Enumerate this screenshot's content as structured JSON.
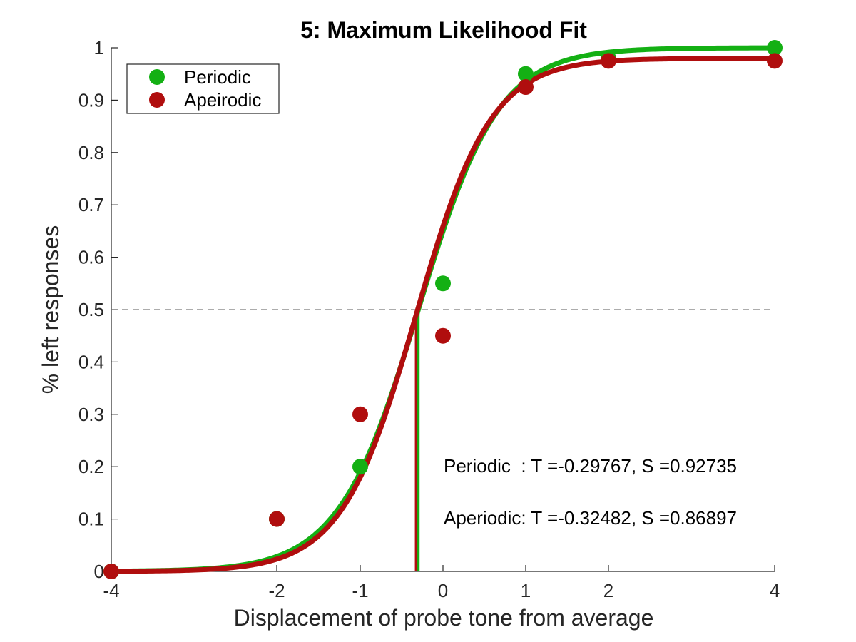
{
  "chart_data": {
    "type": "line",
    "title": "5: Maximum Likelihood Fit",
    "xlabel": "Displacement of probe tone from average",
    "ylabel": "% left responses",
    "xlim": [
      -4,
      4
    ],
    "ylim": [
      0,
      1
    ],
    "x_scale": "custom-nonlinear (ticks at -4,-2,-1,0,1,2,4)",
    "x_ticks": [
      -4,
      -2,
      -1,
      0,
      1,
      2,
      4
    ],
    "x_tick_labels": [
      "-4",
      "-2",
      "-1",
      "0",
      "1",
      "2",
      "4"
    ],
    "y_ticks": [
      0,
      0.1,
      0.2,
      0.3,
      0.4,
      0.5,
      0.6,
      0.7,
      0.8,
      0.9,
      1
    ],
    "y_tick_labels": [
      "0",
      "0.1",
      "0.2",
      "0.3",
      "0.4",
      "0.5",
      "0.6",
      "0.7",
      "0.8",
      "0.9",
      "1"
    ],
    "grid": false,
    "legend_position": "top-left",
    "reference_line_y": 0.5,
    "series": [
      {
        "name": "Periodic",
        "color": "#14b014",
        "x": [
          -4,
          -2,
          -1,
          0,
          1,
          2,
          4
        ],
        "y": [
          0,
          0.1,
          0.2,
          0.55,
          0.95,
          0.98,
          1.0
        ],
        "fit": {
          "threshold": -0.29767,
          "slope": 0.92735,
          "lower": 0,
          "upper": 1.0
        }
      },
      {
        "name": "Apeirodic",
        "color": "#b00e0e",
        "x": [
          -4,
          -2,
          -1,
          0,
          1,
          2,
          4
        ],
        "y": [
          0,
          0.1,
          0.3,
          0.45,
          0.925,
          0.975,
          0.975
        ],
        "fit": {
          "threshold": -0.32482,
          "slope": 0.86897,
          "lower": 0,
          "upper": 0.98
        }
      }
    ],
    "annotations": [
      "Periodic  : T =-0.29767, S =0.92735",
      "Aperiodic: T =-0.32482, S =0.86897"
    ]
  }
}
